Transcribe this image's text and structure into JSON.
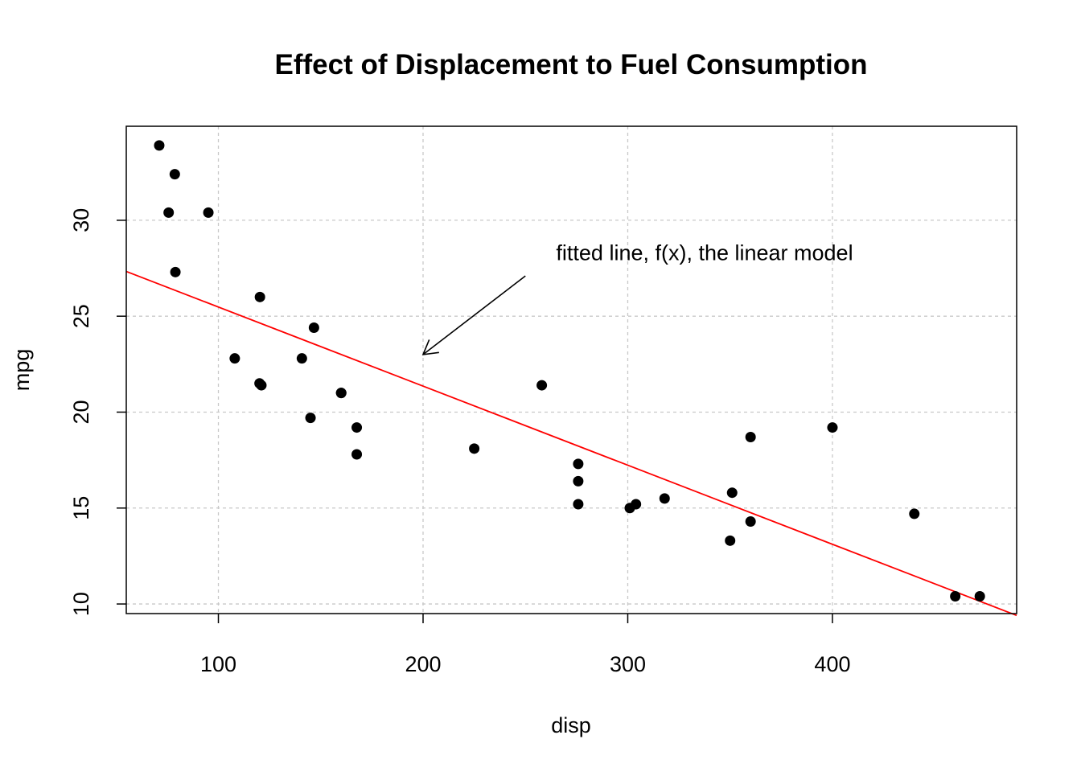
{
  "chart_data": {
    "type": "scatter",
    "title": "Effect of Displacement to Fuel Consumption",
    "xlabel": "disp",
    "ylabel": "mpg",
    "xlim": [
      55,
      490
    ],
    "ylim": [
      9.5,
      34.9
    ],
    "xticks": [
      100,
      200,
      300,
      400
    ],
    "yticks": [
      10,
      15,
      20,
      25,
      30
    ],
    "grid": true,
    "points": [
      {
        "x": 71.1,
        "y": 33.9
      },
      {
        "x": 78.7,
        "y": 32.4
      },
      {
        "x": 75.7,
        "y": 30.4
      },
      {
        "x": 95.1,
        "y": 30.4
      },
      {
        "x": 79.0,
        "y": 27.3
      },
      {
        "x": 120.3,
        "y": 26.0
      },
      {
        "x": 146.7,
        "y": 24.4
      },
      {
        "x": 108.0,
        "y": 22.8
      },
      {
        "x": 140.8,
        "y": 22.8
      },
      {
        "x": 120.1,
        "y": 21.5
      },
      {
        "x": 121.0,
        "y": 21.4
      },
      {
        "x": 258.0,
        "y": 21.4
      },
      {
        "x": 160.0,
        "y": 21.0
      },
      {
        "x": 160.0,
        "y": 21.0
      },
      {
        "x": 145.0,
        "y": 19.7
      },
      {
        "x": 167.6,
        "y": 19.2
      },
      {
        "x": 400.0,
        "y": 19.2
      },
      {
        "x": 360.0,
        "y": 18.7
      },
      {
        "x": 225.0,
        "y": 18.1
      },
      {
        "x": 167.6,
        "y": 17.8
      },
      {
        "x": 275.8,
        "y": 17.3
      },
      {
        "x": 275.8,
        "y": 16.4
      },
      {
        "x": 351.0,
        "y": 15.8
      },
      {
        "x": 318.0,
        "y": 15.5
      },
      {
        "x": 275.8,
        "y": 15.2
      },
      {
        "x": 304.0,
        "y": 15.2
      },
      {
        "x": 301.0,
        "y": 15.0
      },
      {
        "x": 440.0,
        "y": 14.7
      },
      {
        "x": 360.0,
        "y": 14.3
      },
      {
        "x": 350.0,
        "y": 13.3
      },
      {
        "x": 460.0,
        "y": 10.4
      },
      {
        "x": 472.0,
        "y": 10.4
      }
    ],
    "fit_line": {
      "intercept": 29.5999,
      "slope": -0.04122
    },
    "annotation": {
      "text": "fitted line, f(x), the linear model",
      "arrow_from": [
        250,
        27.1
      ],
      "arrow_to": [
        200,
        23.0
      ],
      "text_anchor_data": [
        265,
        28.3
      ]
    },
    "colors": {
      "points": "#000000",
      "fit_line": "#ff0000",
      "grid": "#c8c8c8"
    }
  }
}
